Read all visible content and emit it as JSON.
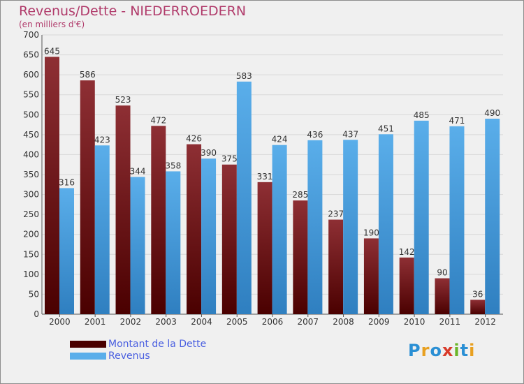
{
  "header": {
    "title": "Revenus/Dette - NIEDERROEDERN",
    "subtitle": "(en milliers d'€)"
  },
  "legend": {
    "debt_label": "Montant de la Dette",
    "revenue_label": "Revenus"
  },
  "logo": {
    "text": "Proxiti"
  },
  "colors": {
    "debt_top": "#8e2f34",
    "debt_bottom": "#4a0000",
    "revenue_top": "#5aaeea",
    "revenue_bottom": "#2f7fc0",
    "title": "#b03a6a",
    "legend_text": "#4a5fe0"
  },
  "chart_data": {
    "type": "bar",
    "title": "Revenus/Dette - NIEDERROEDERN",
    "subtitle": "(en milliers d'€)",
    "categories": [
      "2000",
      "2001",
      "2002",
      "2003",
      "2004",
      "2005",
      "2006",
      "2007",
      "2008",
      "2009",
      "2010",
      "2011",
      "2012"
    ],
    "series": [
      {
        "name": "Montant de la Dette",
        "values": [
          645,
          586,
          523,
          472,
          426,
          375,
          331,
          285,
          237,
          190,
          142,
          90,
          36
        ]
      },
      {
        "name": "Revenus",
        "values": [
          316,
          423,
          344,
          358,
          390,
          583,
          424,
          436,
          437,
          451,
          485,
          471,
          490
        ]
      }
    ],
    "ylim": [
      0,
      700
    ],
    "yticks": [
      0,
      50,
      100,
      150,
      200,
      250,
      300,
      350,
      400,
      450,
      500,
      550,
      600,
      650,
      700
    ],
    "grid": true,
    "legend_position": "bottom-left"
  }
}
